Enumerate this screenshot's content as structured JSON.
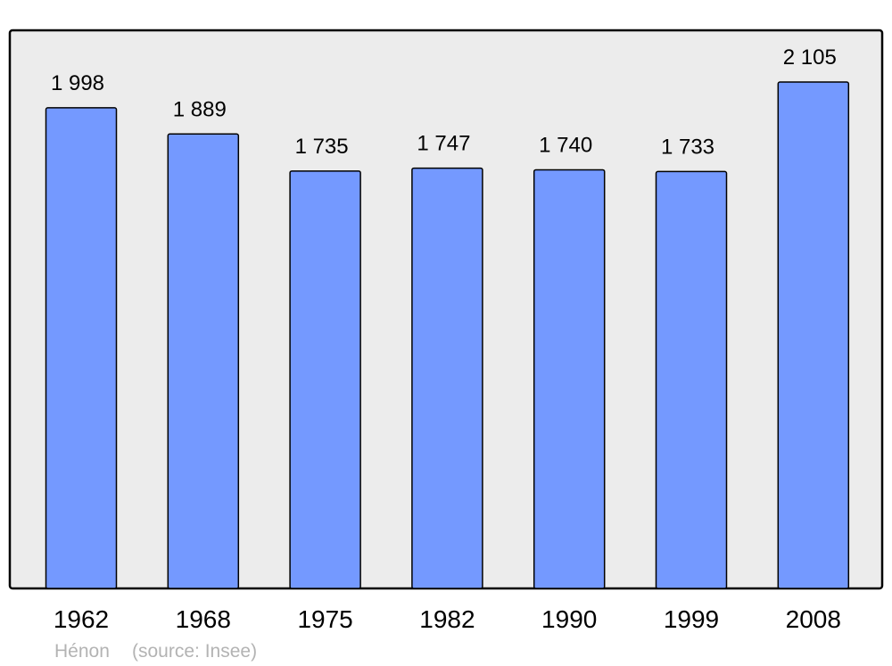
{
  "chart_data": {
    "type": "bar",
    "categories": [
      "1962",
      "1968",
      "1975",
      "1982",
      "1990",
      "1999",
      "2008"
    ],
    "values": [
      1998,
      1889,
      1735,
      1747,
      1740,
      1733,
      2105
    ],
    "value_labels": [
      "1 998",
      "1 889",
      "1 735",
      "1 747",
      "1 740",
      "1 733",
      "2 105"
    ],
    "title": "",
    "xlabel": "",
    "ylabel": "",
    "ylim": [
      0,
      2320
    ],
    "grid": false,
    "colors": {
      "bar": "#7499ff",
      "plot_background": "#ececec",
      "footer_text": "#b3b3b3"
    }
  },
  "footer": {
    "place": "Hénon",
    "source": "(source: Insee)"
  }
}
